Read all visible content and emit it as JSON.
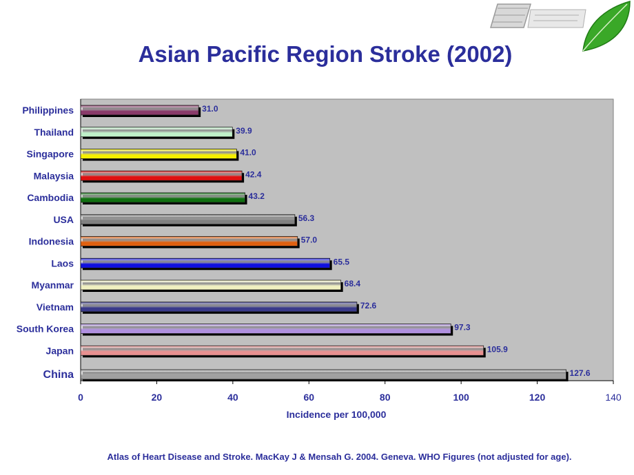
{
  "page": {
    "title": "Asian Pacific Region Stroke (2002)",
    "source": "Atlas of Heart Disease and Stroke. MacKay J & Mensah G. 2004. Geneva.  WHO Figures (not adjusted for age)."
  },
  "logo": {
    "icon": "leaf-icon",
    "colors": {
      "leaf": "#3aa828",
      "leaf_dark": "#1f7a14",
      "badge": "#9a9a9a"
    }
  },
  "chart_data": {
    "type": "bar",
    "orientation": "horizontal",
    "title": "Asian Pacific Region Stroke (2002)",
    "xlabel": "Incidence per 100,000",
    "ylabel": "",
    "xlim": [
      0,
      140
    ],
    "xticks": [
      0,
      20,
      40,
      60,
      80,
      100,
      120,
      140
    ],
    "grid": false,
    "legend": "none",
    "plot_background": "#c0c0c0",
    "categories": [
      "Philippines",
      "Thailand",
      "Singapore",
      "Malaysia",
      "Cambodia",
      "USA",
      "Indonesia",
      "Laos",
      "Myanmar",
      "Vietnam",
      "South Korea",
      "Japan",
      "China"
    ],
    "values": [
      31.0,
      39.9,
      41.0,
      42.4,
      43.2,
      56.3,
      57.0,
      65.5,
      68.4,
      72.6,
      97.3,
      105.9,
      127.6
    ],
    "value_labels": [
      "31.0",
      "39.9",
      "41.0",
      "42.4",
      "43.2",
      "56.3",
      "57.0",
      "65.5",
      "68.4",
      "72.6",
      "97.3",
      "105.9",
      "127.6"
    ],
    "colors": [
      "#8a3a6a",
      "#bff0c8",
      "#f5f000",
      "#e01010",
      "#107010",
      "#808080",
      "#e06010",
      "#1010e0",
      "#f0f0c0",
      "#3a3a8a",
      "#b090e0",
      "#e89090",
      "#a0a0a0"
    ],
    "label_color": "#2b2e9b"
  }
}
